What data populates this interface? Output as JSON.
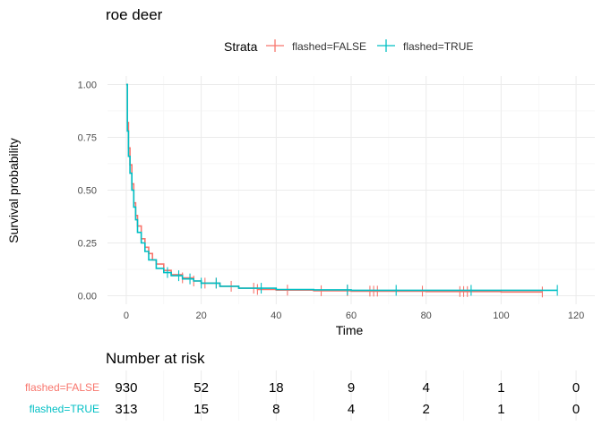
{
  "chart_data": {
    "type": "line",
    "step": true,
    "title": "roe deer",
    "xlabel": "Time",
    "ylabel": "Survival probability",
    "xlim": [
      -5,
      125
    ],
    "ylim": [
      -0.04,
      1.04
    ],
    "x_ticks": [
      0,
      20,
      40,
      60,
      80,
      100,
      120
    ],
    "y_ticks": [
      0.0,
      0.25,
      0.5,
      0.75,
      1.0
    ],
    "y_tick_labels": [
      "0.00",
      "0.25",
      "0.50",
      "0.75",
      "1.00"
    ],
    "grid": true,
    "legend": {
      "position": "top",
      "title": "Strata",
      "entries": [
        "flashed=FALSE",
        "flashed=TRUE"
      ]
    },
    "series": [
      {
        "name": "flashed=FALSE",
        "color": "#F8766D",
        "x": [
          0,
          0.3,
          0.6,
          1,
          1.5,
          2,
          2.5,
          3,
          4,
          5,
          6,
          7,
          8,
          10,
          12,
          15,
          18,
          20,
          25,
          30,
          35,
          40,
          50,
          60,
          80,
          100,
          111
        ],
        "y": [
          1.0,
          0.82,
          0.7,
          0.62,
          0.53,
          0.44,
          0.38,
          0.33,
          0.27,
          0.23,
          0.2,
          0.17,
          0.15,
          0.12,
          0.1,
          0.085,
          0.07,
          0.06,
          0.045,
          0.036,
          0.03,
          0.027,
          0.024,
          0.022,
          0.02,
          0.018,
          0.018
        ],
        "censor_x": [
          15,
          18,
          21,
          24,
          28,
          34,
          35,
          43,
          52,
          59,
          65,
          66,
          67,
          79,
          89,
          90,
          91,
          111
        ]
      },
      {
        "name": "flashed=TRUE",
        "color": "#00BFC4",
        "x": [
          0,
          0.3,
          0.6,
          1,
          1.5,
          2,
          2.5,
          3,
          4,
          5,
          6,
          8,
          10,
          12,
          15,
          18,
          20,
          25,
          30,
          40,
          50,
          60,
          80,
          100,
          115
        ],
        "y": [
          1.0,
          0.78,
          0.66,
          0.58,
          0.5,
          0.42,
          0.36,
          0.3,
          0.25,
          0.21,
          0.17,
          0.13,
          0.11,
          0.095,
          0.08,
          0.07,
          0.06,
          0.045,
          0.036,
          0.03,
          0.028,
          0.026,
          0.026,
          0.026,
          0.026
        ],
        "censor_x": [
          11,
          14,
          17,
          20,
          24,
          36,
          59,
          72,
          92,
          115
        ]
      }
    ]
  },
  "risk_table": {
    "title": "Number at risk",
    "times": [
      0,
      20,
      40,
      60,
      80,
      100,
      120
    ],
    "rows": [
      {
        "label": "flashed=FALSE",
        "color": "#F8766D",
        "values": [
          "930",
          "52",
          "18",
          "9",
          "4",
          "1",
          "0"
        ]
      },
      {
        "label": "flashed=TRUE",
        "color": "#00BFC4",
        "values": [
          "313",
          "15",
          "8",
          "4",
          "2",
          "1",
          "0"
        ]
      }
    ]
  }
}
